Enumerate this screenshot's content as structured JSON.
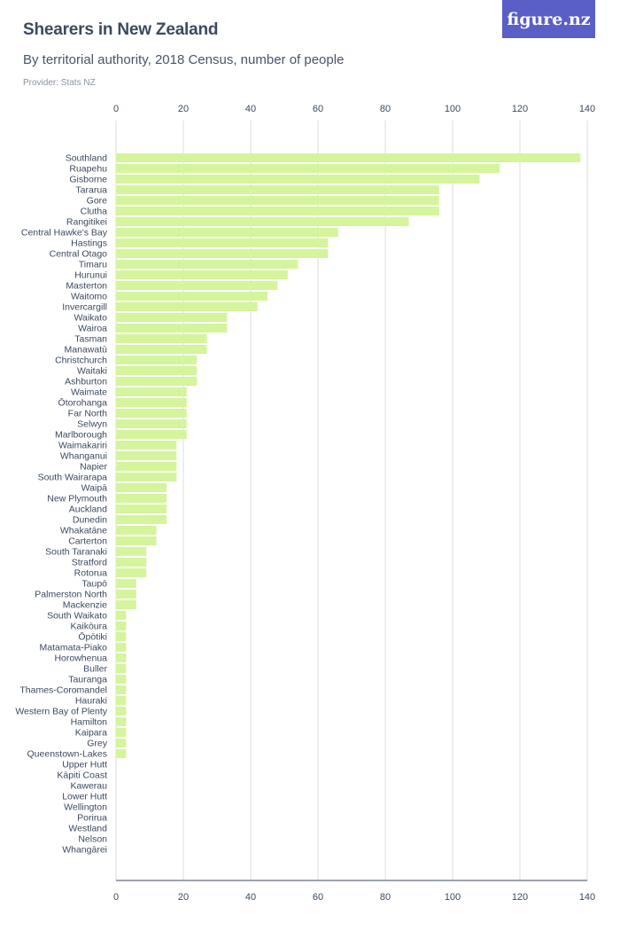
{
  "header": {
    "title": "Shearers in New Zealand",
    "subtitle": "By territorial authority, 2018 Census, number of people",
    "provider": "Provider: Stats NZ",
    "logo": "figure.nz"
  },
  "colors": {
    "bar": "#d4f59c",
    "grid": "#d9dde3",
    "axis": "#3c4a5e",
    "logo_bg": "#5a5fc8"
  },
  "chart_data": {
    "type": "bar",
    "orientation": "horizontal",
    "title": "Shearers in New Zealand",
    "subtitle": "By territorial authority, 2018 Census, number of people",
    "xlabel": "",
    "ylabel": "",
    "xlim": [
      0,
      140
    ],
    "xticks": [
      0,
      20,
      40,
      60,
      80,
      100,
      120,
      140
    ],
    "grid": true,
    "categories": [
      "Southland",
      "Ruapehu",
      "Gisborne",
      "Tararua",
      "Gore",
      "Clutha",
      "Rangitikei",
      "Central Hawke's Bay",
      "Hastings",
      "Central Otago",
      "Timaru",
      "Hurunui",
      "Masterton",
      "Waitomo",
      "Invercargill",
      "Waikato",
      "Wairoa",
      "Tasman",
      "Manawatū",
      "Christchurch",
      "Waitaki",
      "Ashburton",
      "Waimate",
      "Ōtorohanga",
      "Far North",
      "Selwyn",
      "Marlborough",
      "Waimakariri",
      "Whanganui",
      "Napier",
      "South Wairarapa",
      "Waipā",
      "New Plymouth",
      "Auckland",
      "Dunedin",
      "Whakatāne",
      "Carterton",
      "South Taranaki",
      "Stratford",
      "Rotorua",
      "Taupō",
      "Palmerston North",
      "Mackenzie",
      "South Waikato",
      "Kaikōura",
      "Ōpōtiki",
      "Matamata-Piako",
      "Horowhenua",
      "Buller",
      "Tauranga",
      "Thames-Coromandel",
      "Hauraki",
      "Western Bay of Plenty",
      "Hamilton",
      "Kaipara",
      "Grey",
      "Queenstown-Lakes",
      "Upper Hutt",
      "Kāpiti Coast",
      "Kawerau",
      "Lower Hutt",
      "Wellington",
      "Porirua",
      "Westland",
      "Nelson",
      "Whangārei"
    ],
    "values": [
      138,
      114,
      108,
      96,
      96,
      96,
      87,
      66,
      63,
      63,
      54,
      51,
      48,
      45,
      42,
      33,
      33,
      27,
      27,
      24,
      24,
      24,
      21,
      21,
      21,
      21,
      21,
      18,
      18,
      18,
      18,
      15,
      15,
      15,
      15,
      12,
      12,
      9,
      9,
      9,
      6,
      6,
      6,
      3,
      3,
      3,
      3,
      3,
      3,
      3,
      3,
      3,
      3,
      3,
      3,
      3,
      3,
      0,
      0,
      0,
      0,
      0,
      0,
      0,
      0,
      0
    ]
  }
}
